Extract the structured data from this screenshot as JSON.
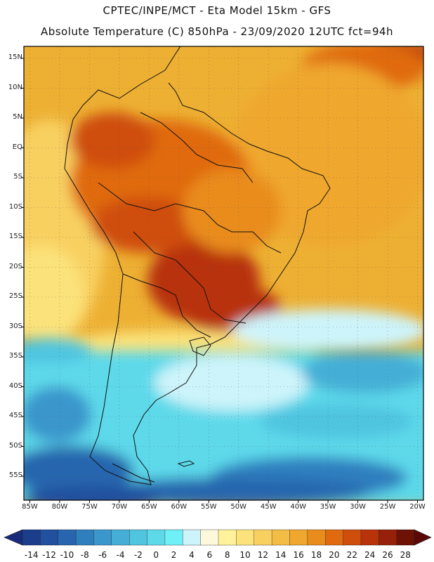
{
  "header": {
    "line1": "CPTEC/INPE/MCT -  Eta Model 15km - GFS",
    "line2": "Absolute Temperature (C) 850hPa - 23/09/2020 12UTC fct=94h"
  },
  "axes": {
    "lat_labels": [
      "15N",
      "10N",
      "5N",
      "EQ",
      "5S",
      "10S",
      "15S",
      "20S",
      "25S",
      "30S",
      "35S",
      "40S",
      "45S",
      "50S",
      "55S"
    ],
    "lon_labels": [
      "85W",
      "80W",
      "75W",
      "70W",
      "65W",
      "60W",
      "55W",
      "50W",
      "45W",
      "40W",
      "35W",
      "30W",
      "25W",
      "20W"
    ]
  },
  "colorbar": {
    "labels": [
      "-14",
      "-12",
      "-10",
      "-8",
      "-6",
      "-4",
      "-2",
      "0",
      "2",
      "4",
      "6",
      "8",
      "10",
      "12",
      "14",
      "16",
      "18",
      "20",
      "22",
      "24",
      "26",
      "28"
    ],
    "colors": [
      "#1a3d8c",
      "#20509e",
      "#2766ae",
      "#2f7fbf",
      "#3b96cc",
      "#45aed6",
      "#4fc5e0",
      "#5dd9ea",
      "#6ff0f6",
      "#cdf4fa",
      "#fdf8dc",
      "#fff29a",
      "#fbe27a",
      "#f8d060",
      "#f3bd45",
      "#efa72e",
      "#e98c1e",
      "#e06a10",
      "#cf4e0c",
      "#b8330a",
      "#972108",
      "#6e1206"
    ],
    "low_color": "#1a2a7a",
    "high_color": "#5a0808"
  },
  "map": {
    "lat_top": 17,
    "lat_bottom": -59,
    "lon_left": -86,
    "lon_right": -19
  }
}
